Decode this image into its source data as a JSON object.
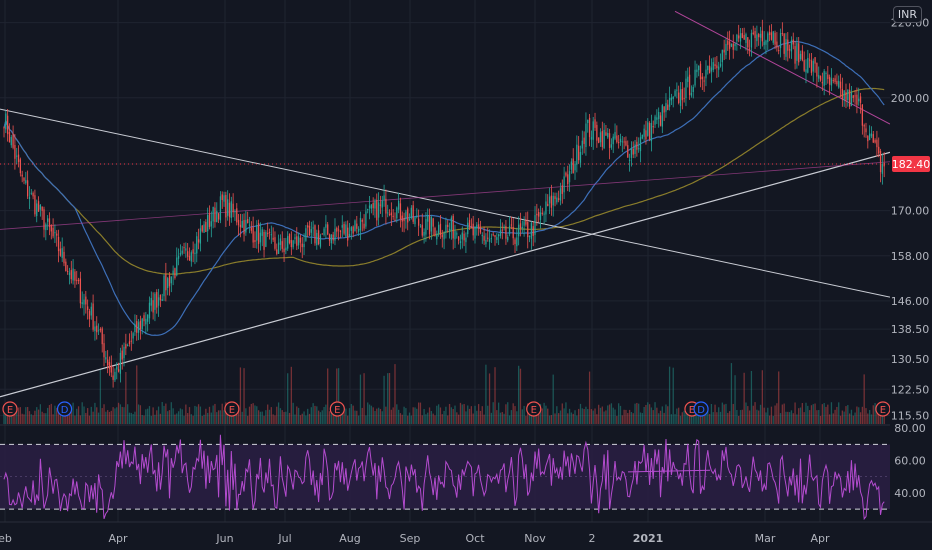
{
  "currency": "INR",
  "price_tag": "182.40",
  "colors": {
    "background": "#131722",
    "grid": "#1f2430",
    "up": "#26a69a",
    "down": "#ef5350",
    "ma_short": "#3d6fb8",
    "ma_long": "#8a7d2b",
    "trendline": "#c9ccd4",
    "resistance": "#b2459a",
    "rsi": "#b44ccf",
    "rsi_band": "#2a1f43",
    "price_tag": "#f23645"
  },
  "chart_data": [
    {
      "type": "candlestick",
      "title": "",
      "y_ticks": [
        "220.00",
        "200.00",
        "182.40",
        "170.00",
        "158.00",
        "146.00",
        "138.50",
        "130.50",
        "122.50",
        "115.50"
      ],
      "x_ticks": [
        "eb",
        "Apr",
        "Jun",
        "Jul",
        "Aug",
        "Sep",
        "Oct",
        "Nov",
        "2",
        "2021",
        "Mar",
        "Apr"
      ],
      "last_price": 182.4,
      "series": [
        {
          "name": "close",
          "trend": [
            [
              0,
              195
            ],
            [
              10,
              178
            ],
            [
              30,
              160
            ],
            [
              50,
              140
            ],
            [
              60,
              126
            ],
            [
              75,
              140
            ],
            [
              95,
              155
            ],
            [
              120,
              172
            ],
            [
              135,
              165
            ],
            [
              150,
              160
            ],
            [
              170,
              163
            ],
            [
              190,
              165
            ],
            [
              210,
              172
            ],
            [
              230,
              166
            ],
            [
              250,
              165
            ],
            [
              270,
              162
            ],
            [
              290,
              165
            ],
            [
              310,
              178
            ],
            [
              320,
              192
            ],
            [
              345,
              186
            ],
            [
              370,
              200
            ],
            [
              395,
              212
            ],
            [
              420,
              218
            ],
            [
              440,
              210
            ],
            [
              455,
              203
            ],
            [
              470,
              198
            ],
            [
              482,
              182
            ]
          ]
        }
      ],
      "event_markers": [
        {
          "label": "E",
          "index": 0
        },
        {
          "label": "D",
          "index": 30
        },
        {
          "label": "E",
          "index": 122
        },
        {
          "label": "E",
          "index": 180
        },
        {
          "label": "E",
          "index": 288
        },
        {
          "label": "E",
          "index": 375
        },
        {
          "label": "D",
          "index": 380
        },
        {
          "label": "E",
          "index": 480
        }
      ],
      "ylim": [
        113,
        226
      ]
    },
    {
      "type": "line",
      "title": "",
      "y_ticks": [
        "80.00",
        "60.00",
        "40.00"
      ],
      "bands": [
        70,
        30
      ],
      "ylim": [
        22,
        82
      ]
    }
  ]
}
